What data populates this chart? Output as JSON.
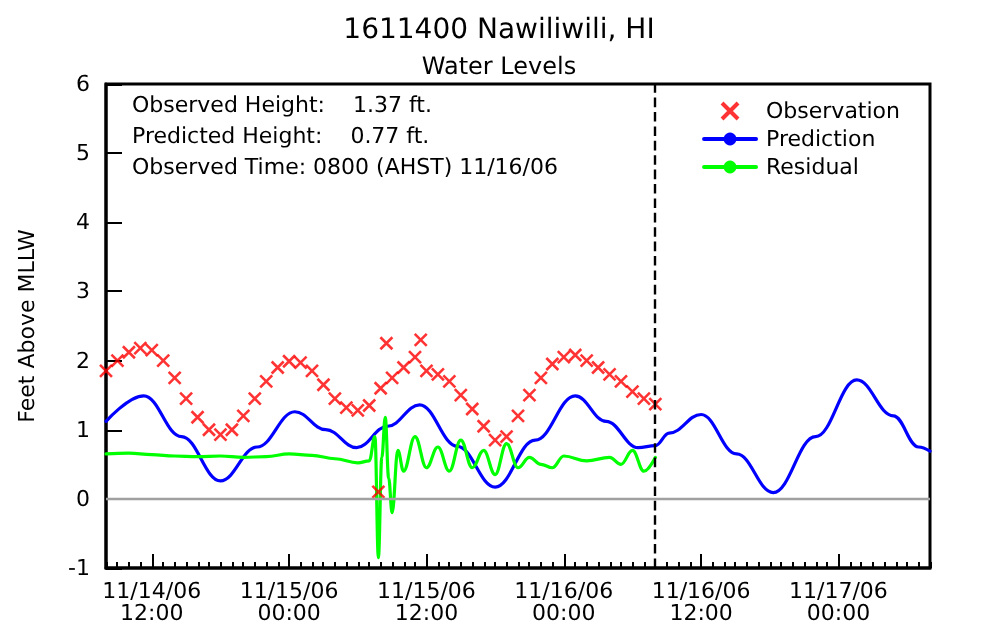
{
  "chart_data": {
    "type": "line",
    "title": "1611400 Nawiliwili, HI",
    "subtitle": "Water Levels",
    "ylabel": "Feet Above MLLW",
    "annotations": [
      "Observed Height:    1.37 ft.",
      "Predicted Height:    0.77 ft.",
      "Observed Time: 0800 (AHST) 11/16/06"
    ],
    "xlim": [
      "--11-14T08:00",
      "--11-17T08:00"
    ],
    "xticks": [
      {
        "value": "--11-14T12:00",
        "label": "11/14/06\n12:00"
      },
      {
        "value": "--11-15T00:00",
        "label": "11/15/06\n00:00"
      },
      {
        "value": "--11-15T12:00",
        "label": "11/15/06\n12:00"
      },
      {
        "value": "--11-16T00:00",
        "label": "11/16/06\n00:00"
      },
      {
        "value": "--11-16T12:00",
        "label": "11/16/06\n12:00"
      },
      {
        "value": "--11-17T00:00",
        "label": "11/17/06\n00:00"
      }
    ],
    "ylim": [
      -1,
      6
    ],
    "yticks": [
      -1,
      0,
      1,
      2,
      3,
      4,
      5,
      6
    ],
    "grid": false,
    "legend": "top right",
    "ref_lines": [
      {
        "axis": "y",
        "value": 0,
        "color": "#a0a0a0",
        "line_style": "solid"
      },
      {
        "axis": "x",
        "value": "--11-16T08:00",
        "color": "#000000",
        "line_style": "dashed"
      }
    ],
    "series": [
      {
        "name": "Observation",
        "type": "scatter",
        "marker": "cross",
        "color": "#ff0000",
        "x": [
          "--11-14T08:00",
          "--11-14T09:00",
          "--11-14T10:00",
          "--11-14T11:00",
          "--11-14T12:00",
          "--11-14T13:00",
          "--11-14T14:00",
          "--11-14T15:00",
          "--11-14T16:00",
          "--11-14T17:00",
          "--11-14T18:00",
          "--11-14T19:00",
          "--11-14T20:00",
          "--11-14T21:00",
          "--11-14T22:00",
          "--11-14T23:00",
          "--11-15T00:00",
          "--11-15T01:00",
          "--11-15T02:00",
          "--11-15T03:00",
          "--11-15T04:00",
          "--11-15T05:00",
          "--11-15T06:00",
          "--11-15T07:00",
          "--11-15T07:48",
          "--11-15T08:00",
          "--11-15T08:30",
          "--11-15T09:00",
          "--11-15T10:00",
          "--11-15T11:00",
          "--11-15T11:30",
          "--11-15T12:00",
          "--11-15T13:00",
          "--11-15T14:00",
          "--11-15T15:00",
          "--11-15T16:00",
          "--11-15T17:00",
          "--11-15T18:00",
          "--11-15T19:00",
          "--11-15T20:00",
          "--11-15T21:00",
          "--11-15T22:00",
          "--11-15T23:00",
          "--11-16T00:00",
          "--11-16T01:00",
          "--11-16T02:00",
          "--11-16T03:00",
          "--11-16T04:00",
          "--11-16T05:00",
          "--11-16T06:00",
          "--11-16T07:00",
          "--11-16T08:00"
        ],
        "values": [
          1.85,
          2.0,
          2.12,
          2.18,
          2.15,
          2.0,
          1.75,
          1.45,
          1.18,
          1.0,
          0.93,
          1.0,
          1.2,
          1.45,
          1.7,
          1.9,
          1.99,
          1.97,
          1.85,
          1.65,
          1.45,
          1.32,
          1.28,
          1.35,
          0.1,
          1.6,
          2.25,
          1.75,
          1.9,
          2.05,
          2.3,
          1.85,
          1.8,
          1.7,
          1.5,
          1.3,
          1.05,
          0.85,
          0.9,
          1.2,
          1.5,
          1.75,
          1.95,
          2.05,
          2.08,
          2.0,
          1.9,
          1.8,
          1.7,
          1.55,
          1.45,
          1.37
        ]
      },
      {
        "name": "Prediction",
        "type": "line",
        "marker": "none",
        "line_style": "solid",
        "color": "#0000ff",
        "x": [
          "--11-14T08:00",
          "--11-14T11:18",
          "--11-14T14:36",
          "--11-14T18:00",
          "--11-14T21:12",
          "--11-15T00:30",
          "--11-15T03:12",
          "--11-15T05:54",
          "--11-15T08:36",
          "--11-15T11:24",
          "--11-15T14:42",
          "--11-15T18:00",
          "--11-15T21:30",
          "--11-16T01:00",
          "--11-16T03:42",
          "--11-16T06:30",
          "--11-16T08:00",
          "--11-16T09:12",
          "--11-16T12:00",
          "--11-16T15:06",
          "--11-16T18:18",
          "--11-16T22:00",
          "--11-17T01:36",
          "--11-17T04:48",
          "--11-17T07:00",
          "--11-17T08:00"
        ],
        "values": [
          1.12,
          1.49,
          0.9,
          0.26,
          0.75,
          1.26,
          1.0,
          0.74,
          1.05,
          1.36,
          0.76,
          0.17,
          0.85,
          1.49,
          1.12,
          0.74,
          0.77,
          0.95,
          1.22,
          0.65,
          0.09,
          0.9,
          1.72,
          1.2,
          0.75,
          0.69
        ]
      },
      {
        "name": "Residual",
        "type": "line",
        "marker": "none",
        "line_style": "solid",
        "color": "#00ff00",
        "x": [
          "--11-14T08:00",
          "--11-14T10:00",
          "--11-14T12:00",
          "--11-14T14:00",
          "--11-14T16:00",
          "--11-14T18:00",
          "--11-14T20:00",
          "--11-14T22:00",
          "--11-15T00:00",
          "--11-15T02:00",
          "--11-15T04:00",
          "--11-15T06:00",
          "--11-15T07:00",
          "--11-15T07:30",
          "--11-15T07:48",
          "--11-15T08:06",
          "--11-15T08:24",
          "--11-15T08:42",
          "--11-15T09:00",
          "--11-15T09:30",
          "--11-15T10:00",
          "--11-15T11:00",
          "--11-15T12:00",
          "--11-15T13:00",
          "--11-15T14:00",
          "--11-15T15:00",
          "--11-15T16:00",
          "--11-15T17:00",
          "--11-15T18:00",
          "--11-15T19:00",
          "--11-15T20:00",
          "--11-15T21:00",
          "--11-15T22:00",
          "--11-15T23:00",
          "--11-16T00:00",
          "--11-16T02:00",
          "--11-16T04:00",
          "--11-16T05:00",
          "--11-16T06:00",
          "--11-16T07:00",
          "--11-16T08:00"
        ],
        "values": [
          0.65,
          0.66,
          0.64,
          0.62,
          0.61,
          0.62,
          0.6,
          0.61,
          0.65,
          0.63,
          0.58,
          0.52,
          0.55,
          0.9,
          -0.85,
          0.6,
          1.18,
          0.3,
          -0.2,
          0.7,
          0.4,
          0.9,
          0.45,
          0.75,
          0.4,
          0.85,
          0.45,
          0.7,
          0.35,
          0.8,
          0.45,
          0.6,
          0.5,
          0.45,
          0.62,
          0.55,
          0.6,
          0.5,
          0.7,
          0.4,
          0.6
        ]
      }
    ]
  }
}
